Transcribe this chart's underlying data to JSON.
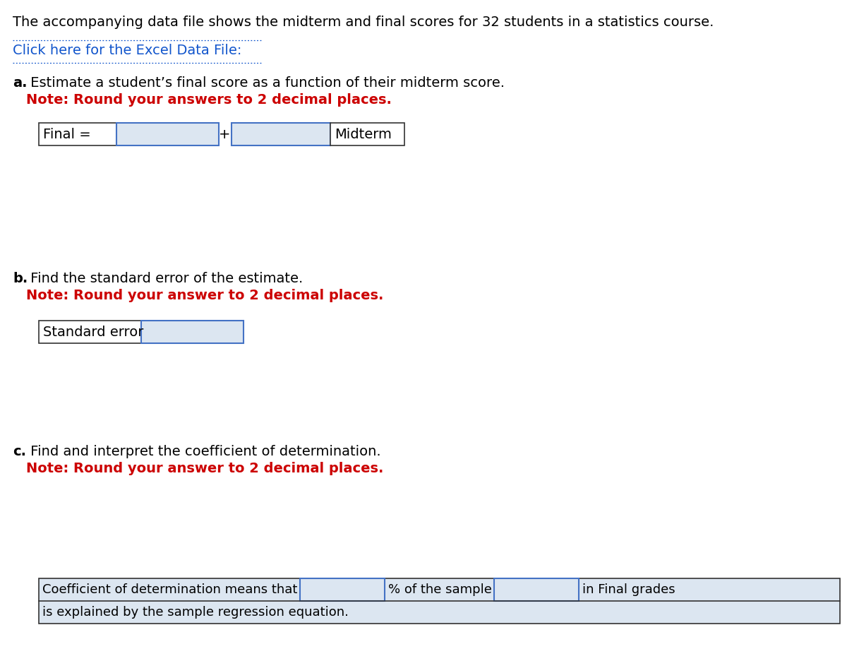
{
  "bg_color": "#ffffff",
  "title_text": "The accompanying data file shows the midterm and final scores for 32 students in a statistics course.",
  "title_color": "#000000",
  "link_text": "Click here for the Excel Data File:",
  "link_color": "#1155CC",
  "section_a_label": "a.",
  "section_a_text": " Estimate a student’s final score as a function of their midterm score.",
  "section_a_note": "Note: Round your answers to 2 decimal places.",
  "section_b_label": "b.",
  "section_b_text": " Find the standard error of the estimate.",
  "section_b_note": "Note: Round your answer to 2 decimal places.",
  "section_c_label": "c.",
  "section_c_text": " Find and interpret the coefficient of determination.",
  "section_c_note": "Note: Round your answer to 2 decimal places.",
  "note_color": "#CC0000",
  "text_color": "#000000",
  "input_bg": "#dce6f1",
  "input_border": "#4472C4",
  "label_bg": "#ffffff",
  "label_border": "#333333",
  "table_c_bg": "#dce6f1",
  "fontsize": 14,
  "note_fontsize": 14
}
